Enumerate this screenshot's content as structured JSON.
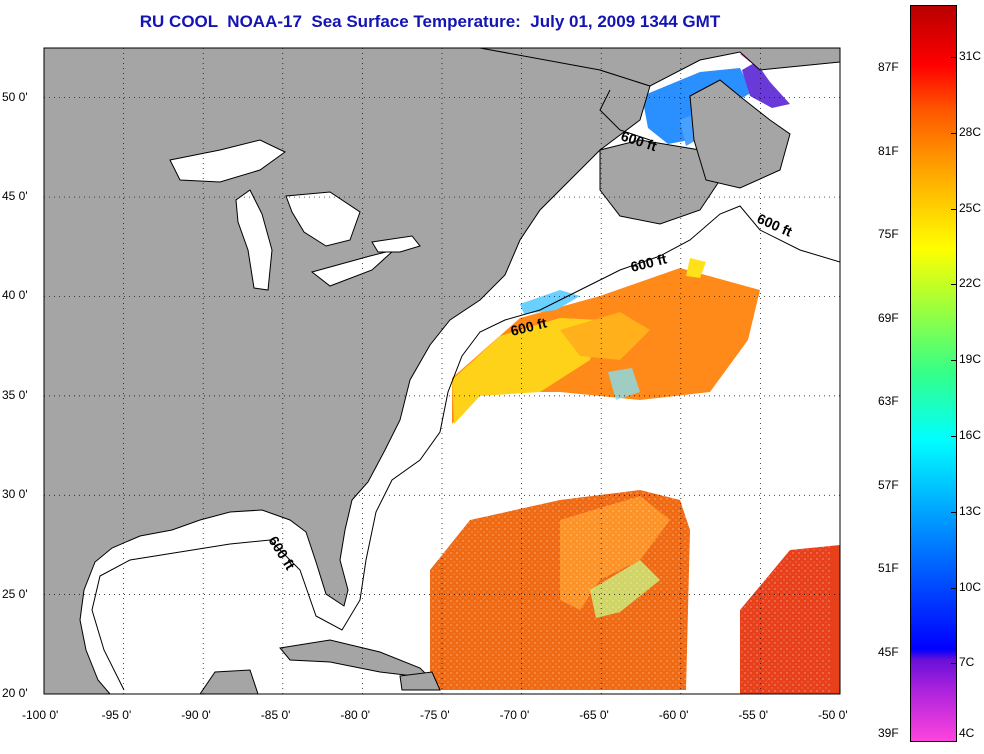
{
  "title": "RU COOL  NOAA-17  Sea Surface Temperature:  July 01, 2009 1344 GMT",
  "map": {
    "lon_range": [
      -100,
      -50
    ],
    "lat_range": [
      20,
      52.5
    ],
    "lon_ticks": [
      "-100 0'",
      "-95 0'",
      "-90 0'",
      "-85 0'",
      "-80 0'",
      "-75 0'",
      "-70 0'",
      "-65 0'",
      "-60 0'",
      "-55 0'",
      "-50 0'"
    ],
    "lat_ticks": [
      "50 0'",
      "45 0'",
      "40 0'",
      "35 0'",
      "30 0'",
      "25 0'",
      "20 0'"
    ],
    "grid": "dotted",
    "land_color": "#a5a5a5",
    "contour_labels": [
      "600 ft",
      "600 ft",
      "600 ft",
      "600 ft",
      "600 ft"
    ]
  },
  "colorbar": {
    "fahrenheit": [
      "87F",
      "81F",
      "75F",
      "69F",
      "63F",
      "57F",
      "51F",
      "45F",
      "39F"
    ],
    "celsius": [
      "31C",
      "28C",
      "25C",
      "22C",
      "19C",
      "16C",
      "13C",
      "10C",
      "7C",
      "4C"
    ]
  }
}
